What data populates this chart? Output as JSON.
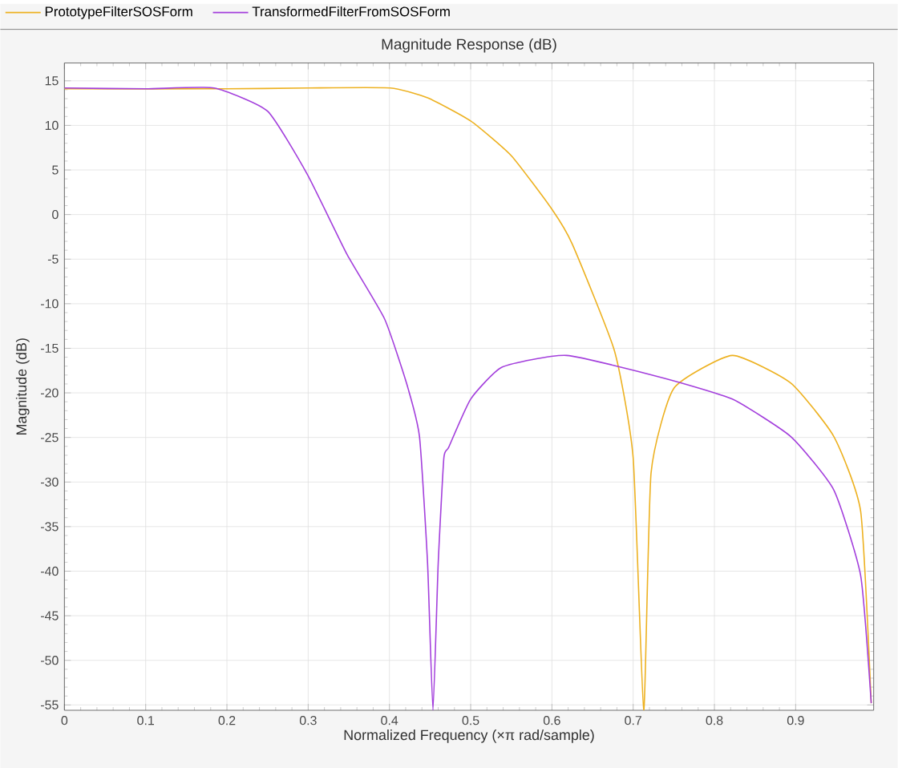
{
  "chart_data": {
    "type": "line",
    "title": "Magnitude Response (dB)",
    "xlabel": "Normalized Frequency (×π rad/sample)",
    "ylabel": "Magnitude (dB)",
    "xlim": [
      0,
      0.996
    ],
    "ylim": [
      -55.6,
      17
    ],
    "xticks": [
      0,
      0.1,
      0.2,
      0.3,
      0.4,
      0.5,
      0.6,
      0.7,
      0.8,
      0.9
    ],
    "yticks": [
      -55,
      -50,
      -45,
      -40,
      -35,
      -30,
      -25,
      -20,
      -15,
      -10,
      -5,
      0,
      5,
      10,
      15
    ],
    "grid": true,
    "legend": "top left",
    "series": [
      {
        "name": "PrototypeFilterSOSForm",
        "color": "#edb120",
        "x": [
          0,
          0.2,
          0.3,
          0.401,
          0.447,
          0.5,
          0.55,
          0.6,
          0.625,
          0.677,
          0.7,
          0.713,
          0.722,
          0.75,
          0.822,
          0.894,
          0.947,
          0.98,
          0.993
        ],
        "values": [
          14.1,
          14.1,
          14.2,
          14.2,
          13.1,
          10.5,
          6.6,
          0.6,
          -3.3,
          -15.3,
          -27.3,
          -55.6,
          -29,
          -19.5,
          -15.8,
          -18.9,
          -24.9,
          -33.3,
          -54.8
        ]
      },
      {
        "name": "TransformedFilterFromSOSForm",
        "color": "#a33fdc",
        "x": [
          0,
          0.1,
          0.184,
          0.25,
          0.299,
          0.348,
          0.394,
          0.421,
          0.437,
          0.447,
          0.4536,
          0.46,
          0.467,
          0.473,
          0.5,
          0.539,
          0.618,
          0.736,
          0.822,
          0.894,
          0.947,
          0.98,
          0.993
        ],
        "values": [
          14.2,
          14.1,
          14.2,
          11.6,
          4.5,
          -4.5,
          -11.7,
          -18.9,
          -24.9,
          -39.2,
          -55.6,
          -39.2,
          -27.3,
          -26.1,
          -20.7,
          -17.1,
          -15.8,
          -18.3,
          -20.7,
          -24.9,
          -30.9,
          -40.5,
          -54.8
        ]
      }
    ]
  }
}
